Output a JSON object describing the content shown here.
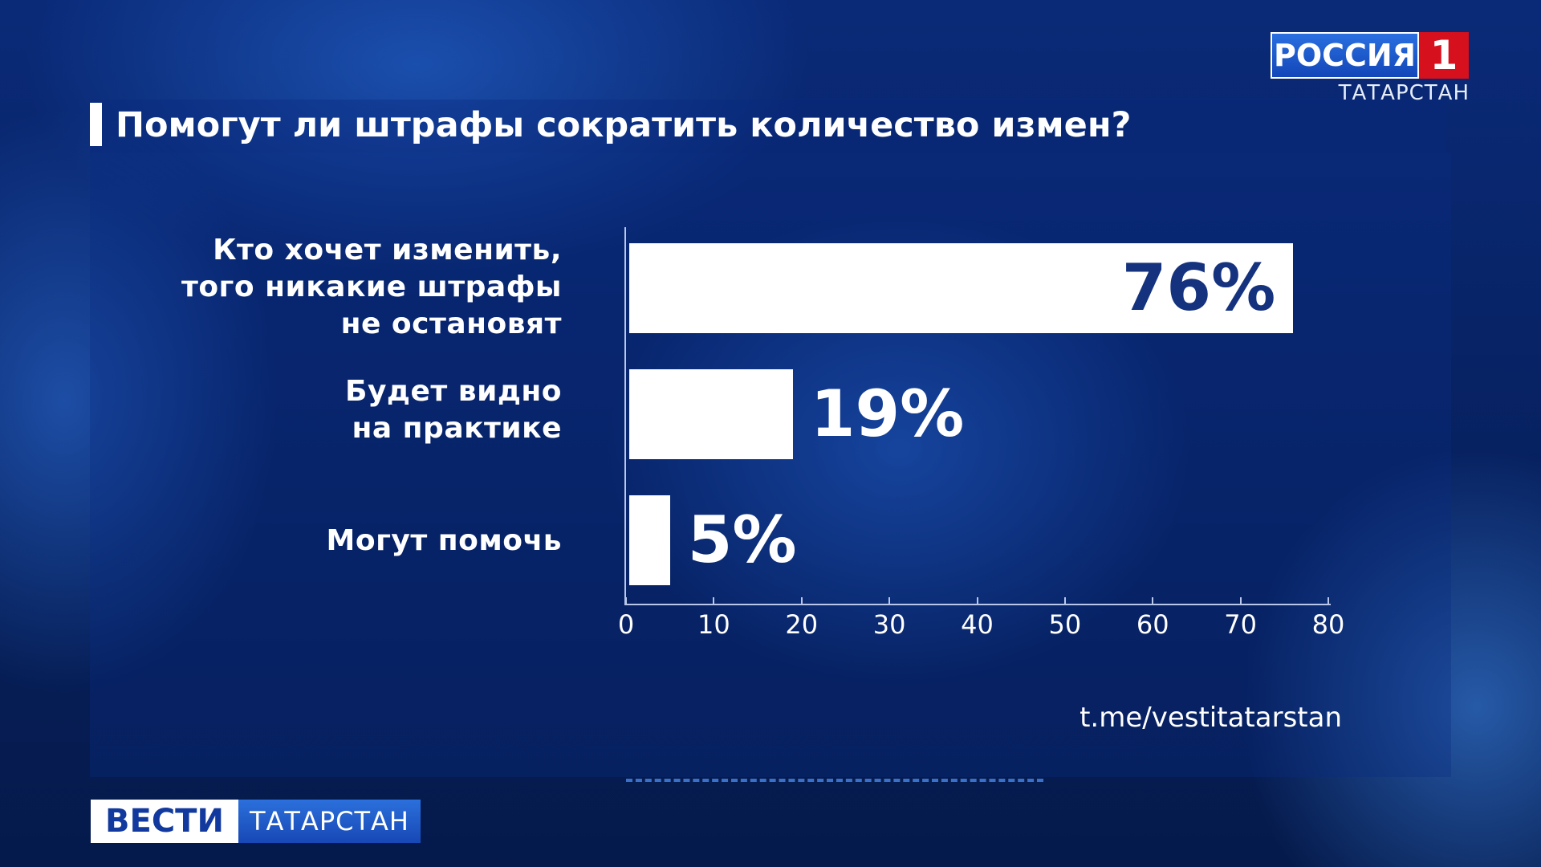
{
  "channel": {
    "logo_text": "РОССИЯ",
    "logo_number": "1",
    "logo_region": "ТАТАРСТАН"
  },
  "program": {
    "name": "ВЕСТИ",
    "region": "ТАТАРСТАН"
  },
  "source": "t.me/vestitatarstan",
  "colors": {
    "background": "#0a2a78",
    "bar": "#ffffff",
    "label_inside": "#15327f",
    "logo_red": "#d6101c"
  },
  "chart_data": {
    "type": "bar",
    "orientation": "horizontal",
    "title": "Помогут ли штрафы сократить количество измен?",
    "categories": [
      "Кто хочет изменить,\nтого никакие штрафы\nне остановят",
      "Будет видно\nна практике",
      "Могут помочь"
    ],
    "values": [
      76,
      19,
      5
    ],
    "value_labels": [
      "76%",
      "19%",
      "5%"
    ],
    "xlim": [
      0,
      80
    ],
    "xticks": [
      0,
      10,
      20,
      30,
      40,
      50,
      60,
      70,
      80
    ],
    "xlabel": "",
    "ylabel": "",
    "grid": false,
    "legend": "none"
  }
}
